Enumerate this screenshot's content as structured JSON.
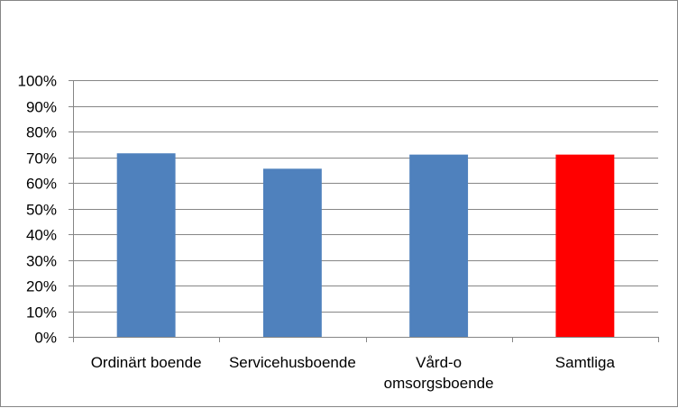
{
  "chart_data": {
    "type": "bar",
    "categories": [
      [
        "Ordinärt boende"
      ],
      [
        "Servicehusboende"
      ],
      [
        "Vård-o",
        "omsorgsboende"
      ],
      [
        "Samtliga"
      ]
    ],
    "values": [
      71.5,
      65.5,
      71,
      71
    ],
    "bar_colors": [
      "#4f81bd",
      "#4f81bd",
      "#4f81bd",
      "#ff0000"
    ],
    "ylim": [
      0,
      100
    ],
    "yticks": [
      0,
      10,
      20,
      30,
      40,
      50,
      60,
      70,
      80,
      90,
      100
    ],
    "ytick_suffix": "%",
    "grid": true,
    "gridline_color": "#868686",
    "legend": "none"
  }
}
